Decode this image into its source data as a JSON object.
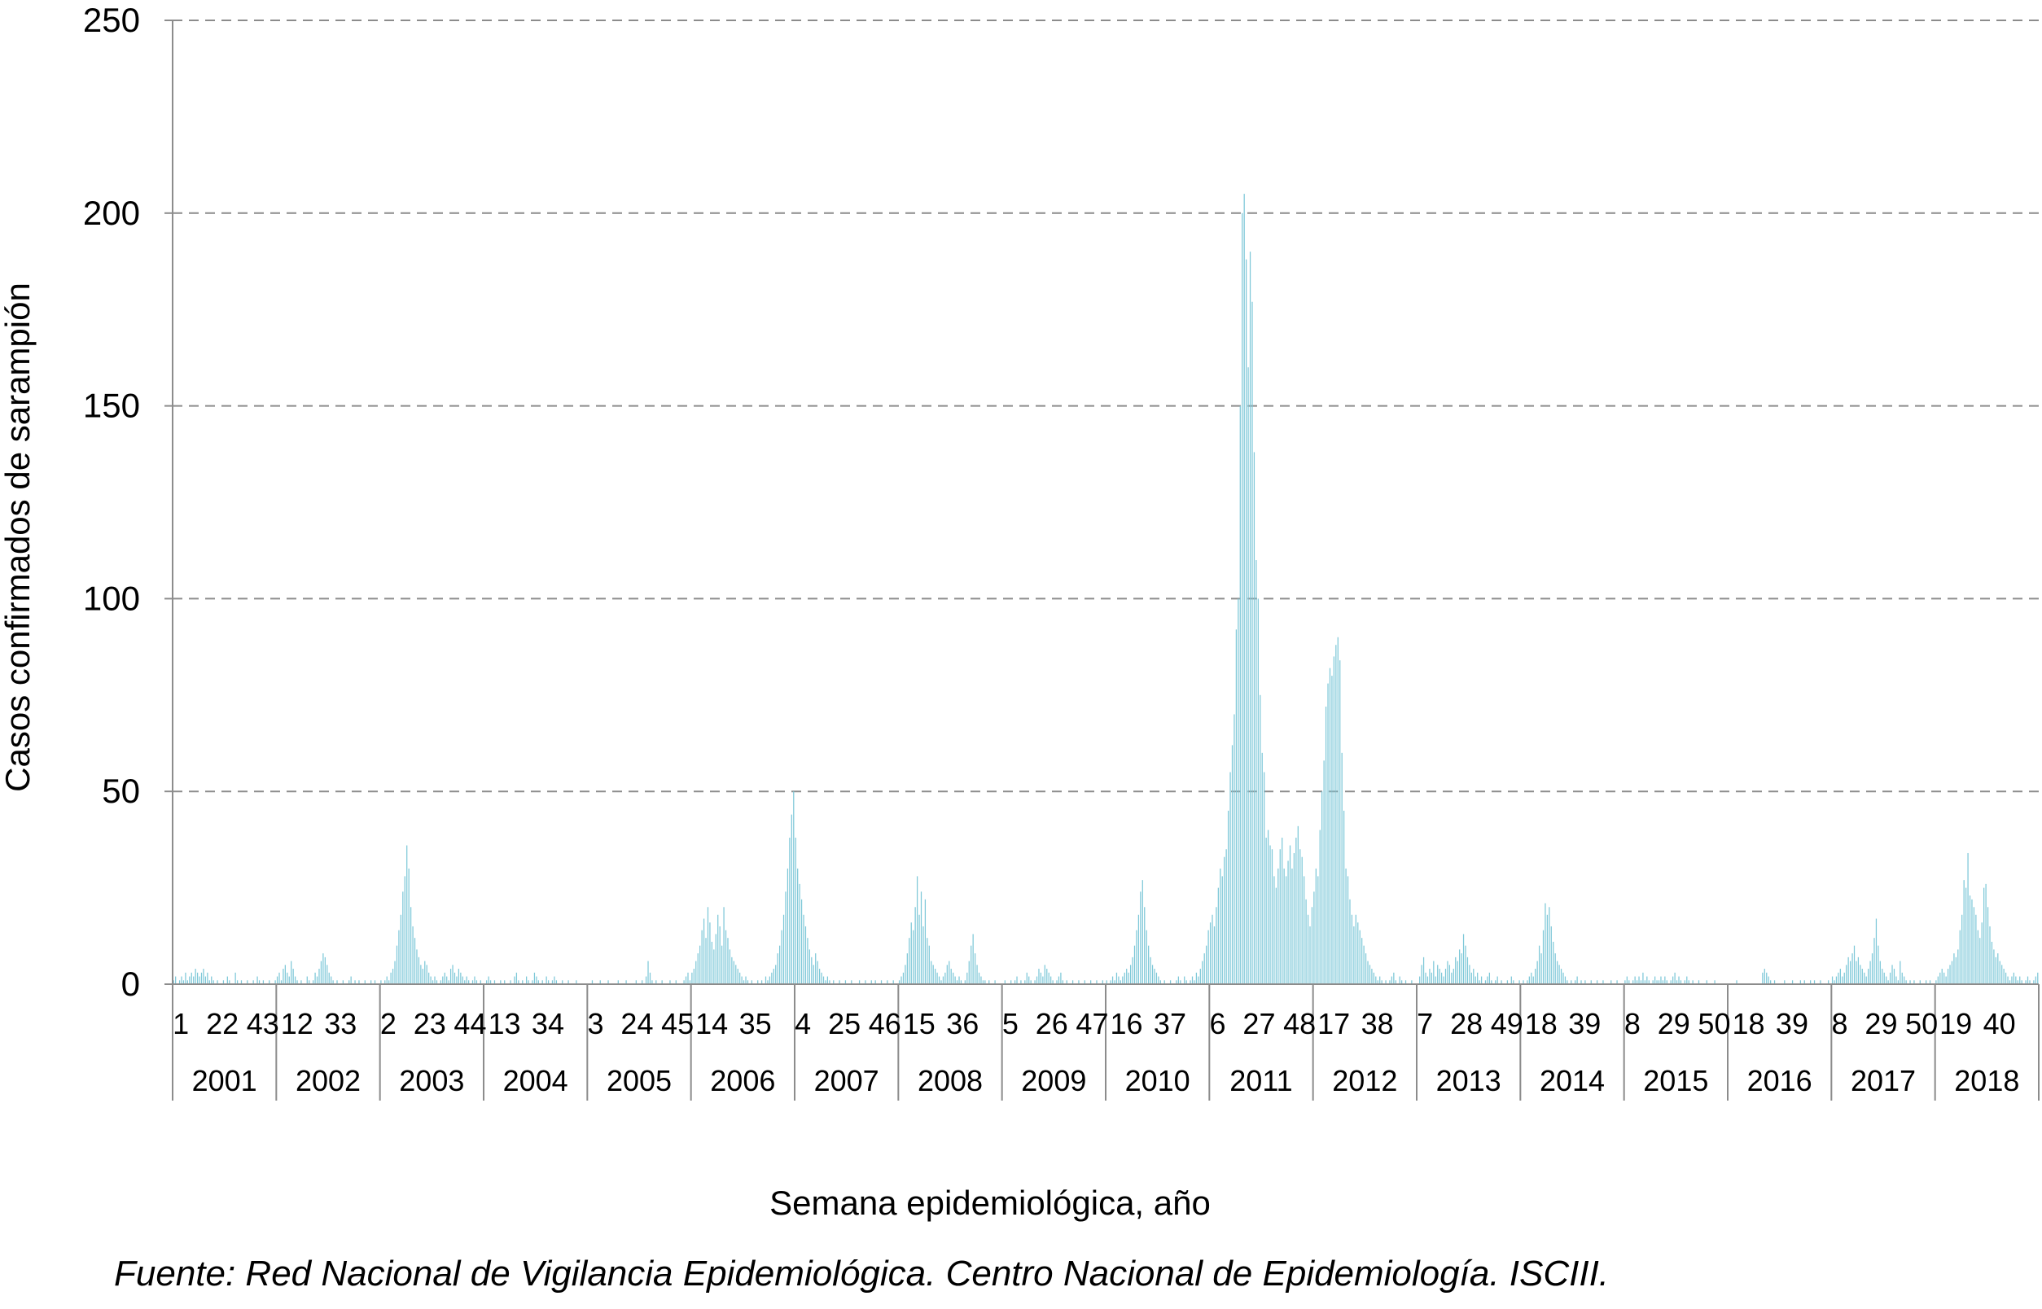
{
  "chart_data": {
    "type": "bar",
    "title": "",
    "ylabel": "Casos confirmados de sarampión",
    "xlabel": "Semana epidemiológica, año",
    "ylim": [
      0,
      250
    ],
    "yticks": [
      "0",
      "50",
      "100",
      "150",
      "200",
      "250"
    ],
    "grid": true,
    "legend": "none",
    "bar_color": "#7ec8d8",
    "years": [
      "2001",
      "2002",
      "2003",
      "2004",
      "2005",
      "2006",
      "2007",
      "2008",
      "2009",
      "2010",
      "2011",
      "2012",
      "2013",
      "2014",
      "2015",
      "2016",
      "2017",
      "2018"
    ],
    "week_ticks": [
      [
        "1",
        "22",
        "43"
      ],
      [
        "12",
        "33"
      ],
      [
        "2",
        "23",
        "44"
      ],
      [
        "13",
        "34"
      ],
      [
        "3",
        "24",
        "45"
      ],
      [
        "14",
        "35"
      ],
      [
        "4",
        "25",
        "46"
      ],
      [
        "15",
        "36"
      ],
      [
        "5",
        "26",
        "47"
      ],
      [
        "16",
        "37"
      ],
      [
        "6",
        "27",
        "48"
      ],
      [
        "17",
        "38"
      ],
      [
        "7",
        "28",
        "49"
      ],
      [
        "18",
        "39"
      ],
      [
        "8",
        "29",
        "50"
      ],
      [
        "18",
        "39"
      ],
      [
        "8",
        "29",
        "50"
      ],
      [
        "19",
        "40"
      ]
    ],
    "series": [
      {
        "values": {
          "2001": [
            1,
            2,
            0,
            1,
            2,
            1,
            3,
            1,
            2,
            3,
            2,
            4,
            3,
            2,
            3,
            4,
            2,
            3,
            1,
            2,
            1,
            0,
            1,
            0,
            0,
            1,
            0,
            2,
            1,
            0,
            0,
            3,
            1,
            0,
            1,
            0,
            0,
            1,
            0,
            0,
            1,
            0,
            2,
            1,
            0,
            1,
            0,
            0,
            1,
            0,
            0,
            1
          ],
          "2002": [
            2,
            3,
            1,
            4,
            5,
            3,
            2,
            6,
            4,
            2,
            1,
            0,
            1,
            0,
            0,
            2,
            1,
            0,
            1,
            3,
            2,
            4,
            6,
            8,
            7,
            5,
            3,
            2,
            1,
            0,
            1,
            0,
            0,
            1,
            0,
            0,
            1,
            2,
            0,
            1,
            0,
            1,
            0,
            0,
            1,
            0,
            0,
            1,
            0,
            1,
            0,
            0
          ],
          "2003": [
            1,
            0,
            1,
            2,
            1,
            3,
            4,
            6,
            10,
            14,
            18,
            24,
            28,
            36,
            30,
            20,
            15,
            12,
            9,
            7,
            5,
            4,
            6,
            5,
            3,
            2,
            1,
            2,
            1,
            0,
            1,
            2,
            3,
            2,
            1,
            4,
            5,
            3,
            2,
            4,
            3,
            2,
            1,
            2,
            1,
            0,
            1,
            2,
            1,
            0,
            1,
            0
          ],
          "2004": [
            0,
            1,
            2,
            1,
            0,
            1,
            0,
            0,
            1,
            0,
            1,
            0,
            0,
            1,
            0,
            2,
            3,
            1,
            0,
            1,
            0,
            2,
            1,
            0,
            1,
            3,
            2,
            1,
            0,
            1,
            0,
            2,
            1,
            0,
            1,
            2,
            1,
            0,
            0,
            1,
            0,
            0,
            1,
            0,
            0,
            0,
            1,
            0,
            0,
            0,
            0,
            0
          ],
          "2005": [
            0,
            0,
            1,
            0,
            0,
            0,
            1,
            0,
            0,
            0,
            1,
            0,
            0,
            0,
            0,
            1,
            0,
            0,
            0,
            1,
            0,
            0,
            0,
            0,
            1,
            0,
            0,
            1,
            0,
            2,
            6,
            3,
            1,
            0,
            1,
            0,
            0,
            1,
            0,
            0,
            0,
            1,
            0,
            0,
            1,
            0,
            0,
            0,
            1,
            2,
            3,
            1
          ],
          "2006": [
            3,
            4,
            6,
            8,
            10,
            14,
            17,
            12,
            20,
            16,
            11,
            9,
            13,
            18,
            15,
            10,
            20,
            14,
            12,
            9,
            7,
            6,
            5,
            4,
            3,
            2,
            1,
            2,
            1,
            0,
            1,
            0,
            0,
            1,
            0,
            1,
            0,
            2,
            1,
            2,
            3,
            4,
            5,
            8,
            10,
            14,
            18,
            24,
            30,
            38,
            44,
            50
          ],
          "2007": [
            38,
            30,
            26,
            22,
            18,
            15,
            12,
            9,
            7,
            5,
            8,
            6,
            4,
            3,
            2,
            1,
            2,
            1,
            0,
            1,
            0,
            0,
            1,
            0,
            0,
            1,
            0,
            0,
            1,
            0,
            0,
            0,
            1,
            0,
            0,
            1,
            0,
            0,
            1,
            0,
            1,
            0,
            0,
            1,
            0,
            0,
            1,
            0,
            0,
            1,
            0,
            0
          ],
          "2008": [
            1,
            2,
            3,
            5,
            8,
            12,
            16,
            14,
            20,
            28,
            18,
            24,
            15,
            22,
            12,
            10,
            6,
            5,
            4,
            3,
            2,
            1,
            2,
            3,
            5,
            6,
            4,
            3,
            2,
            1,
            2,
            1,
            0,
            1,
            3,
            6,
            10,
            13,
            8,
            5,
            3,
            2,
            1,
            1,
            0,
            1,
            0,
            0,
            1,
            0,
            0,
            0
          ],
          "2009": [
            0,
            1,
            0,
            0,
            1,
            0,
            1,
            2,
            0,
            1,
            0,
            1,
            3,
            2,
            1,
            0,
            1,
            2,
            4,
            3,
            2,
            5,
            4,
            3,
            2,
            1,
            0,
            1,
            2,
            3,
            1,
            0,
            1,
            0,
            0,
            1,
            0,
            0,
            1,
            0,
            0,
            1,
            0,
            0,
            1,
            0,
            0,
            1,
            0,
            0,
            1,
            0
          ],
          "2010": [
            1,
            0,
            1,
            2,
            1,
            3,
            2,
            1,
            2,
            3,
            4,
            3,
            5,
            7,
            10,
            14,
            18,
            24,
            27,
            20,
            14,
            10,
            7,
            5,
            4,
            3,
            2,
            1,
            0,
            1,
            0,
            0,
            1,
            0,
            0,
            1,
            2,
            1,
            0,
            2,
            1,
            0,
            1,
            2,
            1,
            3,
            2,
            4,
            6,
            8,
            10,
            14
          ],
          "2011": [
            16,
            18,
            15,
            20,
            25,
            30,
            28,
            33,
            35,
            45,
            55,
            62,
            70,
            92,
            100,
            150,
            200,
            205,
            188,
            160,
            190,
            177,
            138,
            110,
            100,
            75,
            60,
            55,
            38,
            40,
            36,
            35,
            28,
            25,
            30,
            35,
            38,
            30,
            28,
            32,
            36,
            30,
            34,
            38,
            41,
            35,
            33,
            28,
            22,
            18,
            15,
            20
          ],
          "2012": [
            24,
            30,
            28,
            40,
            50,
            58,
            72,
            78,
            82,
            80,
            85,
            88,
            90,
            84,
            60,
            45,
            30,
            28,
            22,
            18,
            15,
            18,
            16,
            14,
            12,
            10,
            8,
            6,
            5,
            4,
            3,
            2,
            1,
            2,
            1,
            0,
            1,
            0,
            1,
            2,
            3,
            1,
            0,
            2,
            1,
            0,
            1,
            0,
            0,
            1,
            0,
            0
          ],
          "2013": [
            0,
            2,
            5,
            7,
            3,
            2,
            4,
            3,
            6,
            2,
            5,
            4,
            3,
            2,
            4,
            6,
            5,
            3,
            4,
            7,
            6,
            9,
            8,
            13,
            10,
            7,
            5,
            3,
            4,
            2,
            3,
            1,
            2,
            0,
            1,
            2,
            3,
            1,
            0,
            1,
            2,
            0,
            1,
            0,
            0,
            1,
            0,
            2,
            1,
            0,
            0,
            1
          ],
          "2014": [
            0,
            1,
            0,
            1,
            2,
            3,
            2,
            4,
            6,
            10,
            8,
            14,
            21,
            18,
            20,
            15,
            11,
            8,
            6,
            5,
            4,
            3,
            2,
            1,
            0,
            1,
            0,
            1,
            2,
            0,
            1,
            0,
            1,
            0,
            0,
            1,
            0,
            0,
            1,
            0,
            0,
            1,
            0,
            0,
            0,
            1,
            0,
            0,
            1,
            0,
            0,
            0
          ],
          "2015": [
            1,
            2,
            1,
            0,
            1,
            2,
            1,
            2,
            1,
            3,
            1,
            2,
            1,
            0,
            1,
            2,
            1,
            1,
            2,
            1,
            2,
            1,
            0,
            1,
            2,
            3,
            1,
            2,
            1,
            0,
            1,
            2,
            1,
            0,
            1,
            0,
            0,
            1,
            0,
            0,
            0,
            1,
            0,
            0,
            0,
            1,
            0,
            0,
            0,
            0,
            0,
            0
          ],
          "2016": [
            0,
            0,
            0,
            0,
            1,
            0,
            0,
            0,
            0,
            0,
            0,
            0,
            0,
            0,
            0,
            0,
            0,
            3,
            4,
            3,
            2,
            1,
            0,
            1,
            0,
            0,
            0,
            0,
            1,
            0,
            0,
            0,
            1,
            0,
            0,
            0,
            1,
            0,
            1,
            0,
            0,
            1,
            0,
            1,
            0,
            0,
            1,
            0,
            0,
            0,
            1,
            0
          ],
          "2017": [
            2,
            1,
            2,
            3,
            4,
            2,
            3,
            5,
            7,
            6,
            8,
            10,
            6,
            7,
            5,
            4,
            3,
            2,
            4,
            6,
            8,
            12,
            17,
            10,
            6,
            4,
            3,
            2,
            1,
            3,
            5,
            4,
            2,
            1,
            6,
            3,
            2,
            1,
            0,
            1,
            0,
            1,
            0,
            0,
            1,
            0,
            0,
            1,
            0,
            1,
            0,
            0
          ],
          "2018": [
            1,
            2,
            3,
            4,
            3,
            2,
            4,
            5,
            6,
            8,
            7,
            9,
            14,
            18,
            27,
            25,
            34,
            23,
            22,
            20,
            18,
            14,
            12,
            16,
            25,
            26,
            20,
            15,
            11,
            9,
            7,
            8,
            6,
            5,
            4,
            3,
            2,
            1,
            2,
            3,
            2,
            1,
            2,
            1,
            0,
            1,
            2,
            1,
            0,
            1,
            2,
            3
          ]
        }
      }
    ]
  },
  "caption": "Fuente: Red Nacional de Vigilancia Epidemiológica. Centro Nacional de Epidemiología. ISCIII."
}
